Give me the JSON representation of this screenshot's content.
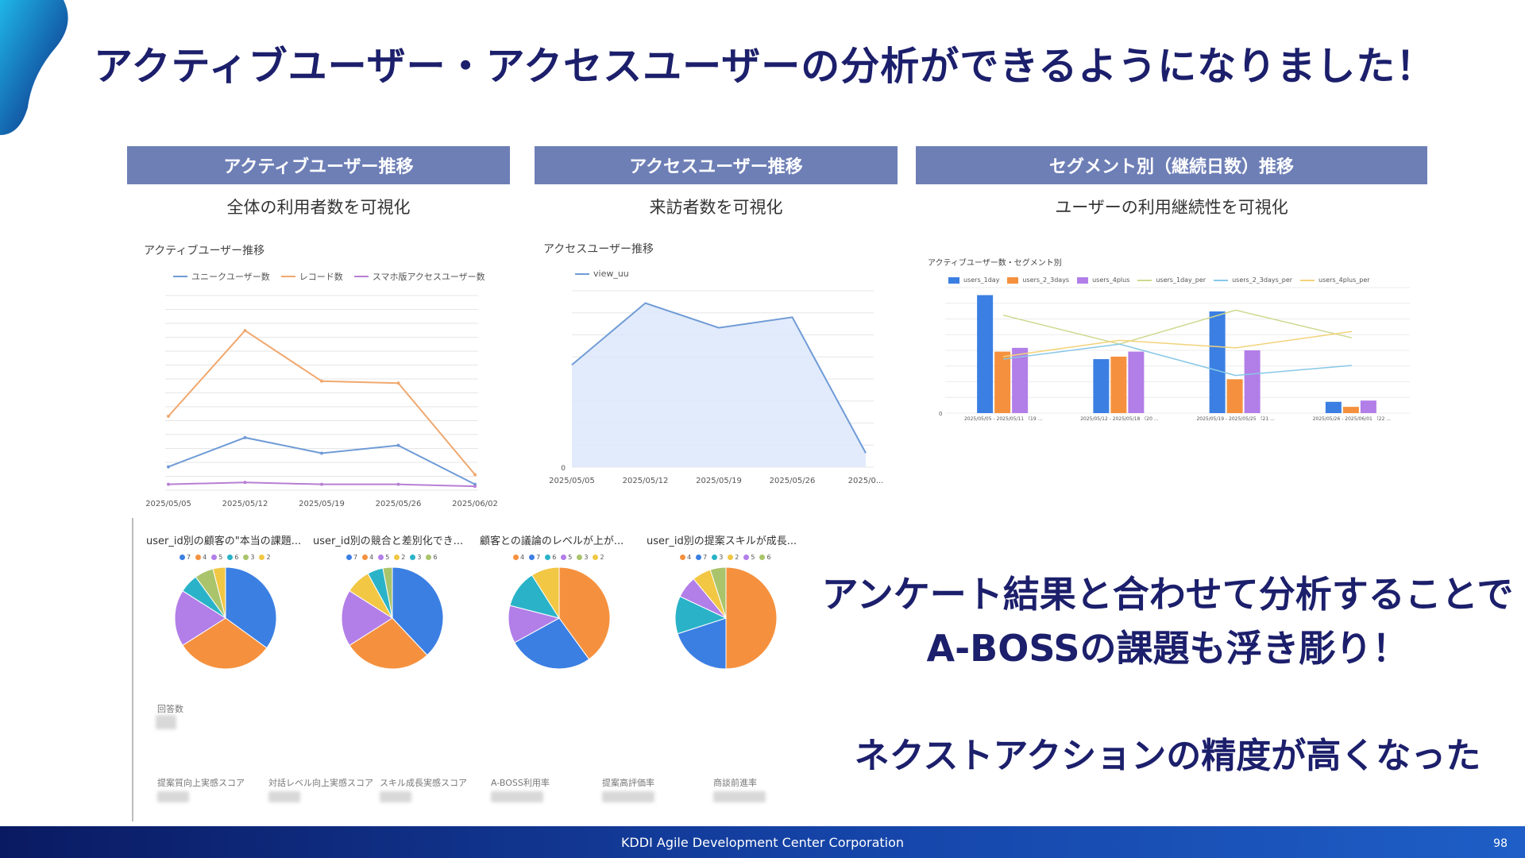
{
  "slide": {
    "title": "アクティブユーザー・アクセスユーザーの分析ができるようになりました！",
    "footer": "KDDI Agile Development Center Corporation",
    "page_number": "98"
  },
  "panels": [
    {
      "header": "アクティブユーザー推移",
      "subtitle": "全体の利用者数を可視化"
    },
    {
      "header": "アクセスユーザー推移",
      "subtitle": "来訪者数を可視化"
    },
    {
      "header": "セグメント別（継続日数）推移",
      "subtitle": "ユーザーの利用継続性を可視化"
    }
  ],
  "chart_data": [
    {
      "type": "line",
      "title": "アクティブユーザー推移",
      "x": [
        "2025/05/05",
        "2025/05/12",
        "2025/05/19",
        "2025/05/26",
        "2025/06/02"
      ],
      "series": [
        {
          "name": "ユニークユーザー数",
          "color": "#6f9bd6",
          "values": [
            0.12,
            0.27,
            0.19,
            0.23,
            0.03
          ]
        },
        {
          "name": "レコード数",
          "color": "#f0a86e",
          "values": [
            0.38,
            0.82,
            0.56,
            0.55,
            0.08
          ]
        },
        {
          "name": "スマホ版アクセスユーザー数",
          "color": "#b77fd4",
          "values": [
            0.03,
            0.04,
            0.03,
            0.03,
            0.02
          ]
        }
      ],
      "grid": true,
      "legend": "top"
    },
    {
      "type": "area",
      "title": "アクセスユーザー推移",
      "x": [
        "2025/05/05",
        "2025/05/12",
        "2025/05/19",
        "2025/05/26",
        "2025/0..."
      ],
      "series": [
        {
          "name": "view_uu",
          "color": "#6f9bd6",
          "values": [
            0.58,
            0.93,
            0.79,
            0.85,
            0.08
          ]
        }
      ],
      "y_ticks": [
        "0"
      ],
      "grid": true,
      "legend": "top-left"
    },
    {
      "type": "bar",
      "title": "アクティブユーザー数・セグメント別",
      "categories": [
        "2025/05/05 - 2025/05/11 （19 ...",
        "2025/05/12 - 2025/05/18 （20 ...",
        "2025/05/19 - 2025/05/25 （21 ...",
        "2025/05/26 - 2025/06/01 （22 ..."
      ],
      "series": [
        {
          "name": "users_1day",
          "kind": "bar",
          "color": "#3b7fe3",
          "values": [
            0.94,
            0.43,
            0.81,
            0.09
          ]
        },
        {
          "name": "users_2_3days",
          "kind": "bar",
          "color": "#f5913e",
          "values": [
            0.49,
            0.45,
            0.27,
            0.05
          ]
        },
        {
          "name": "users_4plus",
          "kind": "bar",
          "color": "#b27ee8",
          "values": [
            0.52,
            0.49,
            0.5,
            0.1
          ]
        },
        {
          "name": "users_1day_per",
          "kind": "line",
          "color": "#cfd88e",
          "values": [
            0.78,
            0.55,
            0.82,
            0.6
          ]
        },
        {
          "name": "users_2_3days_per",
          "kind": "line",
          "color": "#87c7e6",
          "values": [
            0.43,
            0.55,
            0.3,
            0.38
          ]
        },
        {
          "name": "users_4plus_per",
          "kind": "line",
          "color": "#f2d37a",
          "values": [
            0.45,
            0.58,
            0.52,
            0.65
          ]
        }
      ],
      "y_ticks": [
        "0"
      ],
      "legend": "top-left"
    }
  ],
  "pies": [
    {
      "title": "user_id別の顧客の\"本当の課題...",
      "legend": [
        {
          "label": "7",
          "color": "#3b7fe3"
        },
        {
          "label": "4",
          "color": "#f5913e"
        },
        {
          "label": "5",
          "color": "#b27ee8"
        },
        {
          "label": "6",
          "color": "#2ab3c8"
        },
        {
          "label": "3",
          "color": "#a9c46a"
        },
        {
          "label": "2",
          "color": "#f2c744"
        }
      ],
      "slices": [
        {
          "color": "#3b7fe3",
          "value": 35
        },
        {
          "color": "#f5913e",
          "value": 31
        },
        {
          "color": "#b27ee8",
          "value": 18
        },
        {
          "color": "#2ab3c8",
          "value": 6
        },
        {
          "color": "#a9c46a",
          "value": 6
        },
        {
          "color": "#f2c744",
          "value": 4
        }
      ]
    },
    {
      "title": "user_id別の競合と差別化でき...",
      "legend": [
        {
          "label": "7",
          "color": "#3b7fe3"
        },
        {
          "label": "4",
          "color": "#f5913e"
        },
        {
          "label": "5",
          "color": "#b27ee8"
        },
        {
          "label": "2",
          "color": "#f2c744"
        },
        {
          "label": "3",
          "color": "#2ab3c8"
        },
        {
          "label": "6",
          "color": "#a9c46a"
        }
      ],
      "slices": [
        {
          "color": "#3b7fe3",
          "value": 38
        },
        {
          "color": "#f5913e",
          "value": 28
        },
        {
          "color": "#b27ee8",
          "value": 18
        },
        {
          "color": "#f2c744",
          "value": 8
        },
        {
          "color": "#2ab3c8",
          "value": 5
        },
        {
          "color": "#a9c46a",
          "value": 3
        }
      ]
    },
    {
      "title": "顧客との議論のレベルが上が...",
      "legend": [
        {
          "label": "4",
          "color": "#f5913e"
        },
        {
          "label": "7",
          "color": "#3b7fe3"
        },
        {
          "label": "6",
          "color": "#2ab3c8"
        },
        {
          "label": "5",
          "color": "#b27ee8"
        },
        {
          "label": "3",
          "color": "#a9c46a"
        },
        {
          "label": "2",
          "color": "#f2c744"
        }
      ],
      "slices": [
        {
          "color": "#f5913e",
          "value": 40
        },
        {
          "color": "#3b7fe3",
          "value": 27
        },
        {
          "color": "#b27ee8",
          "value": 12
        },
        {
          "color": "#2ab3c8",
          "value": 12
        },
        {
          "color": "#f2c744",
          "value": 9
        }
      ]
    },
    {
      "title": "user_id別の提案スキルが成長...",
      "legend": [
        {
          "label": "4",
          "color": "#f5913e"
        },
        {
          "label": "7",
          "color": "#3b7fe3"
        },
        {
          "label": "3",
          "color": "#2ab3c8"
        },
        {
          "label": "2",
          "color": "#f2c744"
        },
        {
          "label": "5",
          "color": "#b27ee8"
        },
        {
          "label": "6",
          "color": "#a9c46a"
        }
      ],
      "slices": [
        {
          "color": "#f5913e",
          "value": 50
        },
        {
          "color": "#3b7fe3",
          "value": 20
        },
        {
          "color": "#2ab3c8",
          "value": 12
        },
        {
          "color": "#b27ee8",
          "value": 7
        },
        {
          "color": "#f2c744",
          "value": 6
        },
        {
          "color": "#a9c46a",
          "value": 5
        }
      ]
    }
  ],
  "scorecards": {
    "response_count_label": "回答数",
    "labels": [
      "提案質向上実感スコア",
      "対話レベル向上実感スコア",
      "スキル成長実感スコア",
      "A-BOSS利用率",
      "提案高評価率",
      "商談前進率"
    ]
  },
  "callout": {
    "line1": "アンケート結果と合わせて分析することで",
    "line2": "A-BOSSの課題も浮き彫り！",
    "line3": "ネクストアクションの精度が高くなった"
  }
}
